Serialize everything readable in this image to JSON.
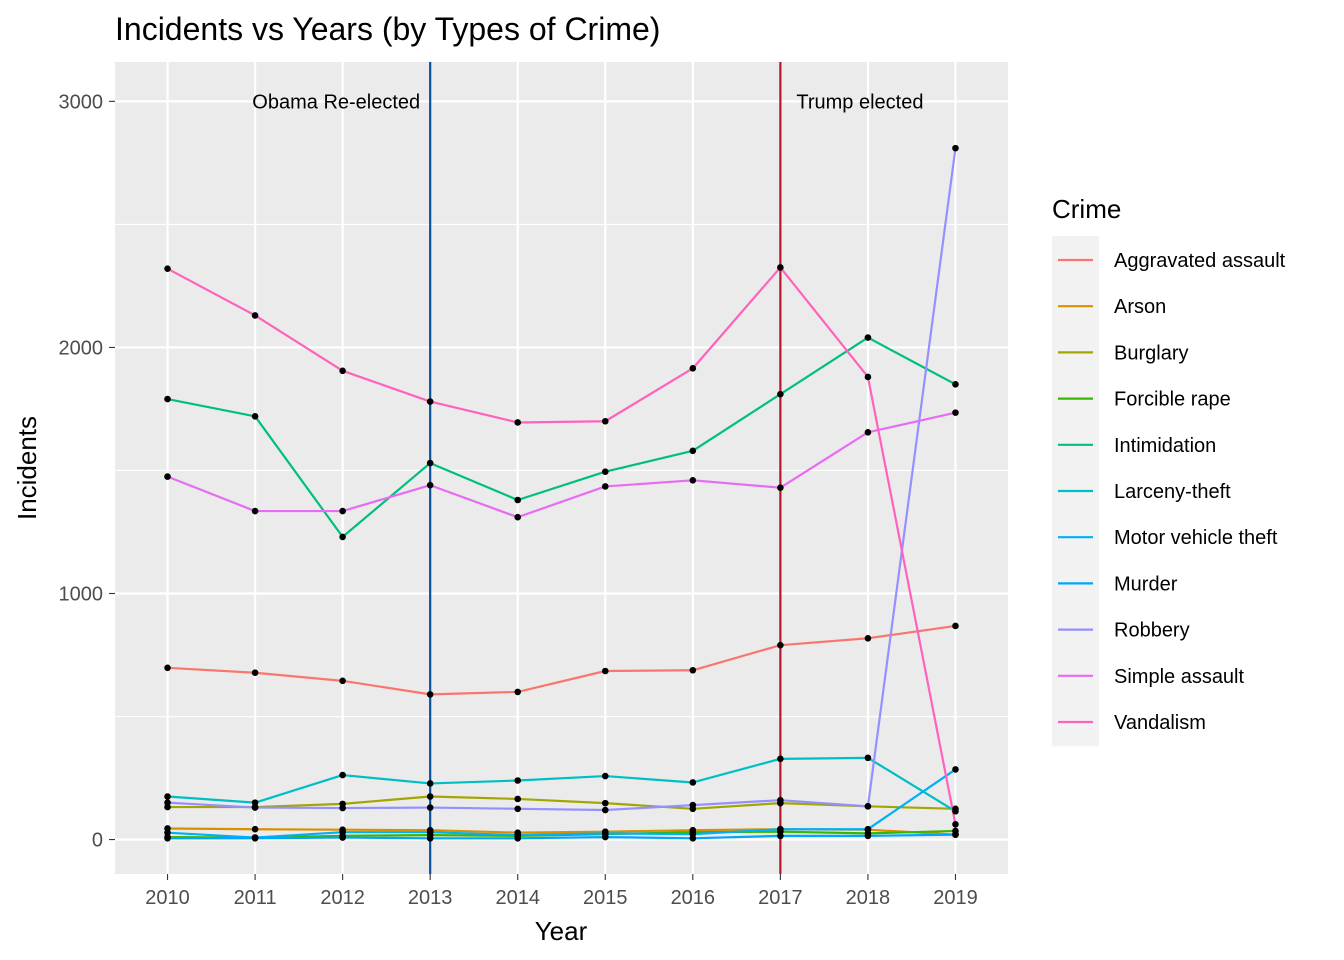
{
  "chart_data": {
    "type": "line",
    "title": "Incidents vs Years (by Types of Crime)",
    "xlabel": "Year",
    "ylabel": "Incidents",
    "x": [
      2010,
      2011,
      2012,
      2013,
      2014,
      2015,
      2016,
      2017,
      2018,
      2019
    ],
    "x_ticks": [
      "2010",
      "2011",
      "2012",
      "2013",
      "2014",
      "2015",
      "2016",
      "2017",
      "2018",
      "2019"
    ],
    "ylim": [
      -140,
      3160
    ],
    "y_ticks": [
      0,
      1000,
      2000,
      3000
    ],
    "y_tick_labels": [
      "0",
      "1000",
      "2000",
      "3000"
    ],
    "grid": true,
    "legend": {
      "title": "Crime",
      "position": "right"
    },
    "series": [
      {
        "name": "Aggravated assault",
        "color": "#F8766D",
        "values": [
          698,
          678,
          645,
          590,
          600,
          685,
          688,
          790,
          818,
          868
        ]
      },
      {
        "name": "Arson",
        "color": "#D89000",
        "values": [
          45,
          42,
          40,
          38,
          28,
          32,
          38,
          42,
          40,
          20
        ]
      },
      {
        "name": "Burglary",
        "color": "#A3A500",
        "values": [
          132,
          132,
          145,
          175,
          165,
          148,
          125,
          148,
          135,
          125
        ]
      },
      {
        "name": "Forcible rape",
        "color": "#39B600",
        "values": [
          10,
          8,
          15,
          18,
          15,
          22,
          30,
          32,
          25,
          35
        ]
      },
      {
        "name": "Intimidation",
        "color": "#00BF7D",
        "values": [
          1790,
          1720,
          1230,
          1530,
          1380,
          1495,
          1580,
          1810,
          2040,
          1850
        ]
      },
      {
        "name": "Larceny-theft",
        "color": "#00BFC4",
        "values": [
          175,
          150,
          262,
          228,
          240,
          258,
          232,
          328,
          332,
          115
        ]
      },
      {
        "name": "Motor vehicle theft",
        "color": "#00B0F6",
        "values": [
          28,
          8,
          30,
          30,
          18,
          25,
          22,
          42,
          42,
          285
        ]
      },
      {
        "name": "Murder",
        "color": "#00A5FF",
        "values": [
          5,
          5,
          8,
          5,
          5,
          10,
          5,
          15,
          15,
          20
        ]
      },
      {
        "name": "Robbery",
        "color": "#9590FF",
        "values": [
          150,
          130,
          128,
          130,
          125,
          120,
          140,
          160,
          135,
          2810
        ]
      },
      {
        "name": "Simple assault",
        "color": "#E76BF3",
        "values": [
          1475,
          1335,
          1335,
          1440,
          1310,
          1435,
          1460,
          1430,
          1655,
          1735
        ]
      },
      {
        "name": "Vandalism",
        "color": "#FF62BC",
        "values": [
          2320,
          2130,
          1905,
          1780,
          1695,
          1700,
          1915,
          2325,
          1880,
          62
        ]
      }
    ],
    "annotations": [
      {
        "label": "Obama Re-elected",
        "x": 2013,
        "color": "#08519C"
      },
      {
        "label": "Trump elected",
        "x": 2017,
        "color": "#B2182B"
      }
    ]
  }
}
